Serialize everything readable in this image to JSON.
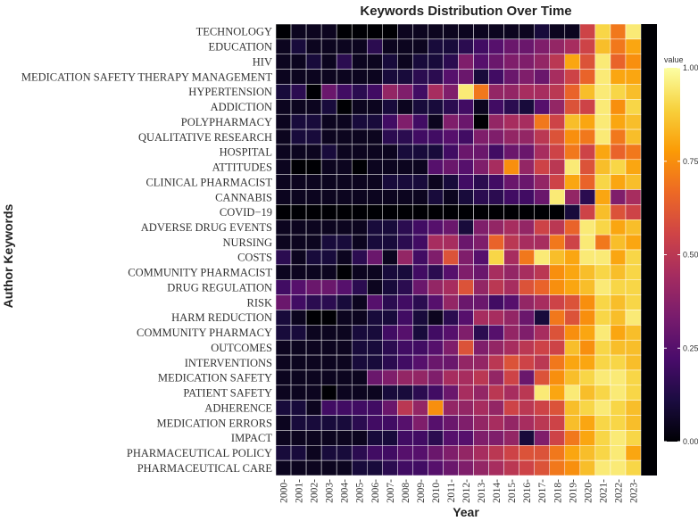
{
  "chart_data": {
    "type": "heatmap",
    "title": "Keywords Distribution Over Time",
    "xlabel": "Year",
    "ylabel": "Author Keywords",
    "x": [
      "2000",
      "2001",
      "2002",
      "2003",
      "2004",
      "2005",
      "2006",
      "2007",
      "2008",
      "2009",
      "2010",
      "2011",
      "2012",
      "2013",
      "2014",
      "2015",
      "2016",
      "2017",
      "2018",
      "2019",
      "2020",
      "2021",
      "2022",
      "2023"
    ],
    "y": [
      "TECHNOLOGY",
      "EDUCATION",
      "HIV",
      "MEDICATION SAFETY THERAPY MANAGEMENT",
      "HYPERTENSION",
      "ADDICTION",
      "POLYPHARMACY",
      "QUALITATIVE RESEARCH",
      "HOSPITAL",
      "ATTITUDES",
      "CLINICAL PHARMACIST",
      "CANNABIS",
      "COVID−19",
      "ADVERSE DRUG EVENTS",
      "NURSING",
      "COSTS",
      "COMMUNITY PHARMACIST",
      "DRUG REGULATION",
      "RISK",
      "HARM REDUCTION",
      "COMMUNITY PHARMACY",
      "OUTCOMES",
      "INTERVENTIONS",
      "MEDICATION SAFETY",
      "PATIENT SAFETY",
      "ADHERENCE",
      "MEDICATION ERRORS",
      "IMPACT",
      "PHARMACEUTICAL POLICY",
      "PHARMACEUTICAL CARE"
    ],
    "values": [
      [
        0.0,
        0.05,
        0.05,
        0.05,
        0.0,
        0.0,
        0.0,
        0.0,
        0.05,
        0.05,
        0.05,
        0.05,
        0.05,
        0.05,
        0.05,
        0.05,
        0.05,
        0.1,
        0.05,
        0.05,
        0.55,
        0.9,
        0.7,
        0.95
      ],
      [
        0.05,
        0.1,
        0.05,
        0.05,
        0.05,
        0.05,
        0.15,
        0.05,
        0.05,
        0.05,
        0.1,
        0.1,
        0.15,
        0.2,
        0.25,
        0.3,
        0.3,
        0.35,
        0.4,
        0.45,
        0.55,
        0.85,
        0.7,
        0.8
      ],
      [
        0.05,
        0.05,
        0.1,
        0.05,
        0.15,
        0.05,
        0.05,
        0.1,
        0.05,
        0.1,
        0.1,
        0.15,
        0.35,
        0.25,
        0.3,
        0.35,
        0.35,
        0.4,
        0.5,
        0.8,
        0.6,
        0.95,
        0.65,
        0.75
      ],
      [
        0.05,
        0.05,
        0.05,
        0.05,
        0.05,
        0.05,
        0.05,
        0.1,
        0.1,
        0.15,
        0.15,
        0.25,
        0.3,
        0.1,
        0.2,
        0.3,
        0.35,
        0.3,
        0.45,
        0.55,
        0.65,
        0.95,
        0.8,
        0.8
      ],
      [
        0.1,
        0.15,
        0.0,
        0.3,
        0.2,
        0.15,
        0.2,
        0.4,
        0.35,
        0.2,
        0.45,
        0.35,
        0.95,
        0.7,
        0.4,
        0.4,
        0.45,
        0.45,
        0.5,
        0.65,
        0.85,
        0.95,
        0.9,
        0.85
      ],
      [
        0.05,
        0.05,
        0.05,
        0.1,
        0.0,
        0.05,
        0.05,
        0.1,
        0.05,
        0.1,
        0.1,
        0.15,
        0.2,
        0.05,
        0.2,
        0.15,
        0.1,
        0.25,
        0.4,
        0.6,
        0.55,
        0.95,
        0.75,
        0.9
      ],
      [
        0.05,
        0.1,
        0.1,
        0.05,
        0.05,
        0.1,
        0.1,
        0.2,
        0.35,
        0.2,
        0.05,
        0.35,
        0.3,
        0.0,
        0.4,
        0.45,
        0.45,
        0.7,
        0.55,
        0.85,
        0.8,
        0.95,
        0.8,
        0.85
      ],
      [
        0.05,
        0.1,
        0.1,
        0.05,
        0.05,
        0.05,
        0.05,
        0.15,
        0.15,
        0.2,
        0.2,
        0.25,
        0.2,
        0.35,
        0.35,
        0.4,
        0.4,
        0.5,
        0.6,
        0.75,
        0.7,
        0.95,
        0.7,
        0.85
      ],
      [
        0.05,
        0.05,
        0.05,
        0.1,
        0.05,
        0.05,
        0.05,
        0.05,
        0.1,
        0.1,
        0.1,
        0.2,
        0.3,
        0.3,
        0.2,
        0.3,
        0.3,
        0.45,
        0.55,
        0.7,
        0.55,
        0.8,
        0.65,
        0.7
      ],
      [
        0.05,
        0.0,
        0.0,
        0.05,
        0.05,
        0.0,
        0.05,
        0.05,
        0.05,
        0.05,
        0.25,
        0.3,
        0.25,
        0.35,
        0.45,
        0.75,
        0.4,
        0.55,
        0.5,
        0.95,
        0.6,
        0.85,
        0.9,
        0.8
      ],
      [
        0.05,
        0.05,
        0.05,
        0.05,
        0.05,
        0.05,
        0.05,
        0.1,
        0.1,
        0.1,
        0.05,
        0.1,
        0.2,
        0.15,
        0.2,
        0.3,
        0.3,
        0.4,
        0.55,
        0.8,
        0.65,
        0.9,
        0.8,
        0.85
      ],
      [
        0.05,
        0.05,
        0.05,
        0.05,
        0.05,
        0.05,
        0.05,
        0.05,
        0.05,
        0.05,
        0.1,
        0.05,
        0.1,
        0.15,
        0.15,
        0.2,
        0.2,
        0.3,
        0.95,
        0.4,
        0.15,
        0.8,
        0.35,
        0.45
      ],
      [
        0.0,
        0.0,
        0.0,
        0.0,
        0.0,
        0.0,
        0.0,
        0.0,
        0.0,
        0.0,
        0.0,
        0.0,
        0.0,
        0.0,
        0.0,
        0.0,
        0.0,
        0.0,
        0.0,
        0.1,
        0.55,
        0.85,
        0.6,
        0.55
      ],
      [
        0.05,
        0.05,
        0.05,
        0.05,
        0.05,
        0.05,
        0.1,
        0.1,
        0.15,
        0.2,
        0.25,
        0.3,
        0.1,
        0.35,
        0.4,
        0.45,
        0.4,
        0.55,
        0.5,
        0.65,
        0.95,
        0.9,
        0.8,
        0.85
      ],
      [
        0.05,
        0.05,
        0.05,
        0.1,
        0.1,
        0.05,
        0.1,
        0.1,
        0.15,
        0.2,
        0.45,
        0.45,
        0.3,
        0.35,
        0.65,
        0.5,
        0.45,
        0.45,
        0.7,
        0.55,
        0.95,
        0.7,
        0.85,
        0.8
      ],
      [
        0.15,
        0.05,
        0.1,
        0.1,
        0.05,
        0.15,
        0.3,
        0.05,
        0.4,
        0.2,
        0.35,
        0.6,
        0.35,
        0.25,
        0.9,
        0.45,
        0.7,
        0.95,
        0.85,
        0.8,
        0.95,
        0.95,
        0.8,
        0.9
      ],
      [
        0.05,
        0.05,
        0.05,
        0.05,
        0.0,
        0.05,
        0.05,
        0.1,
        0.1,
        0.2,
        0.15,
        0.25,
        0.35,
        0.3,
        0.45,
        0.4,
        0.45,
        0.5,
        0.75,
        0.8,
        0.85,
        0.9,
        0.85,
        0.9
      ],
      [
        0.2,
        0.25,
        0.3,
        0.3,
        0.25,
        0.15,
        0.05,
        0.1,
        0.15,
        0.3,
        0.4,
        0.45,
        0.6,
        0.4,
        0.5,
        0.45,
        0.6,
        0.65,
        0.75,
        0.8,
        0.85,
        0.95,
        0.9,
        0.9
      ],
      [
        0.3,
        0.2,
        0.15,
        0.15,
        0.1,
        0.05,
        0.25,
        0.15,
        0.2,
        0.15,
        0.25,
        0.4,
        0.3,
        0.3,
        0.2,
        0.25,
        0.4,
        0.45,
        0.55,
        0.6,
        0.75,
        0.9,
        0.85,
        0.9
      ],
      [
        0.1,
        0.05,
        0.0,
        0.0,
        0.05,
        0.05,
        0.1,
        0.1,
        0.2,
        0.1,
        0.05,
        0.15,
        0.25,
        0.45,
        0.45,
        0.4,
        0.3,
        0.1,
        0.7,
        0.6,
        0.75,
        0.9,
        0.85,
        0.95
      ],
      [
        0.1,
        0.1,
        0.05,
        0.05,
        0.05,
        0.1,
        0.1,
        0.2,
        0.25,
        0.1,
        0.2,
        0.25,
        0.35,
        0.15,
        0.25,
        0.4,
        0.35,
        0.45,
        0.6,
        0.75,
        0.8,
        0.95,
        0.8,
        0.85
      ],
      [
        0.05,
        0.05,
        0.05,
        0.05,
        0.05,
        0.1,
        0.1,
        0.15,
        0.2,
        0.2,
        0.25,
        0.35,
        0.6,
        0.35,
        0.4,
        0.45,
        0.5,
        0.55,
        0.55,
        0.85,
        0.75,
        0.9,
        0.85,
        0.85
      ],
      [
        0.05,
        0.05,
        0.05,
        0.05,
        0.05,
        0.1,
        0.1,
        0.15,
        0.2,
        0.25,
        0.3,
        0.3,
        0.4,
        0.4,
        0.5,
        0.6,
        0.55,
        0.5,
        0.7,
        0.8,
        0.8,
        0.9,
        0.9,
        0.85
      ],
      [
        0.05,
        0.05,
        0.05,
        0.05,
        0.05,
        0.05,
        0.3,
        0.35,
        0.4,
        0.4,
        0.35,
        0.45,
        0.45,
        0.5,
        0.4,
        0.55,
        0.3,
        0.6,
        0.75,
        0.85,
        0.9,
        0.95,
        0.95,
        0.9
      ],
      [
        0.05,
        0.05,
        0.05,
        0.0,
        0.05,
        0.05,
        0.05,
        0.1,
        0.1,
        0.15,
        0.2,
        0.3,
        0.45,
        0.4,
        0.5,
        0.45,
        0.5,
        0.95,
        0.8,
        0.95,
        0.85,
        0.9,
        0.95,
        0.9
      ],
      [
        0.1,
        0.1,
        0.05,
        0.2,
        0.2,
        0.2,
        0.2,
        0.3,
        0.5,
        0.4,
        0.75,
        0.4,
        0.4,
        0.45,
        0.4,
        0.55,
        0.5,
        0.55,
        0.6,
        0.85,
        0.9,
        0.95,
        0.9,
        0.85
      ],
      [
        0.05,
        0.1,
        0.1,
        0.1,
        0.1,
        0.15,
        0.2,
        0.2,
        0.25,
        0.35,
        0.25,
        0.3,
        0.35,
        0.4,
        0.45,
        0.4,
        0.45,
        0.5,
        0.55,
        0.85,
        0.8,
        0.9,
        0.9,
        0.85
      ],
      [
        0.05,
        0.05,
        0.05,
        0.05,
        0.05,
        0.05,
        0.1,
        0.1,
        0.2,
        0.2,
        0.15,
        0.25,
        0.25,
        0.35,
        0.35,
        0.4,
        0.1,
        0.35,
        0.55,
        0.7,
        0.8,
        0.9,
        0.95,
        0.9
      ],
      [
        0.1,
        0.1,
        0.05,
        0.1,
        0.1,
        0.15,
        0.2,
        0.2,
        0.25,
        0.25,
        0.3,
        0.35,
        0.4,
        0.45,
        0.5,
        0.55,
        0.6,
        0.6,
        0.7,
        0.8,
        0.85,
        0.9,
        0.95,
        0.8
      ],
      [
        0.05,
        0.05,
        0.05,
        0.05,
        0.05,
        0.1,
        0.1,
        0.15,
        0.2,
        0.2,
        0.25,
        0.3,
        0.35,
        0.4,
        0.45,
        0.5,
        0.55,
        0.6,
        0.7,
        0.75,
        0.85,
        0.95,
        0.95,
        0.9
      ]
    ],
    "value_range": [
      0,
      1
    ],
    "legend": {
      "title": "value",
      "ticks": [
        "0.00",
        "0.25",
        "0.50",
        "0.75",
        "1.00"
      ],
      "placement": "right"
    },
    "colormap": {
      "name": "inferno",
      "stops": [
        "#000004",
        "#1b0c41",
        "#4a0c6b",
        "#781c6d",
        "#a52c60",
        "#cf4446",
        "#ed6925",
        "#fb9b06",
        "#f7d13d",
        "#fcffa4"
      ]
    }
  }
}
